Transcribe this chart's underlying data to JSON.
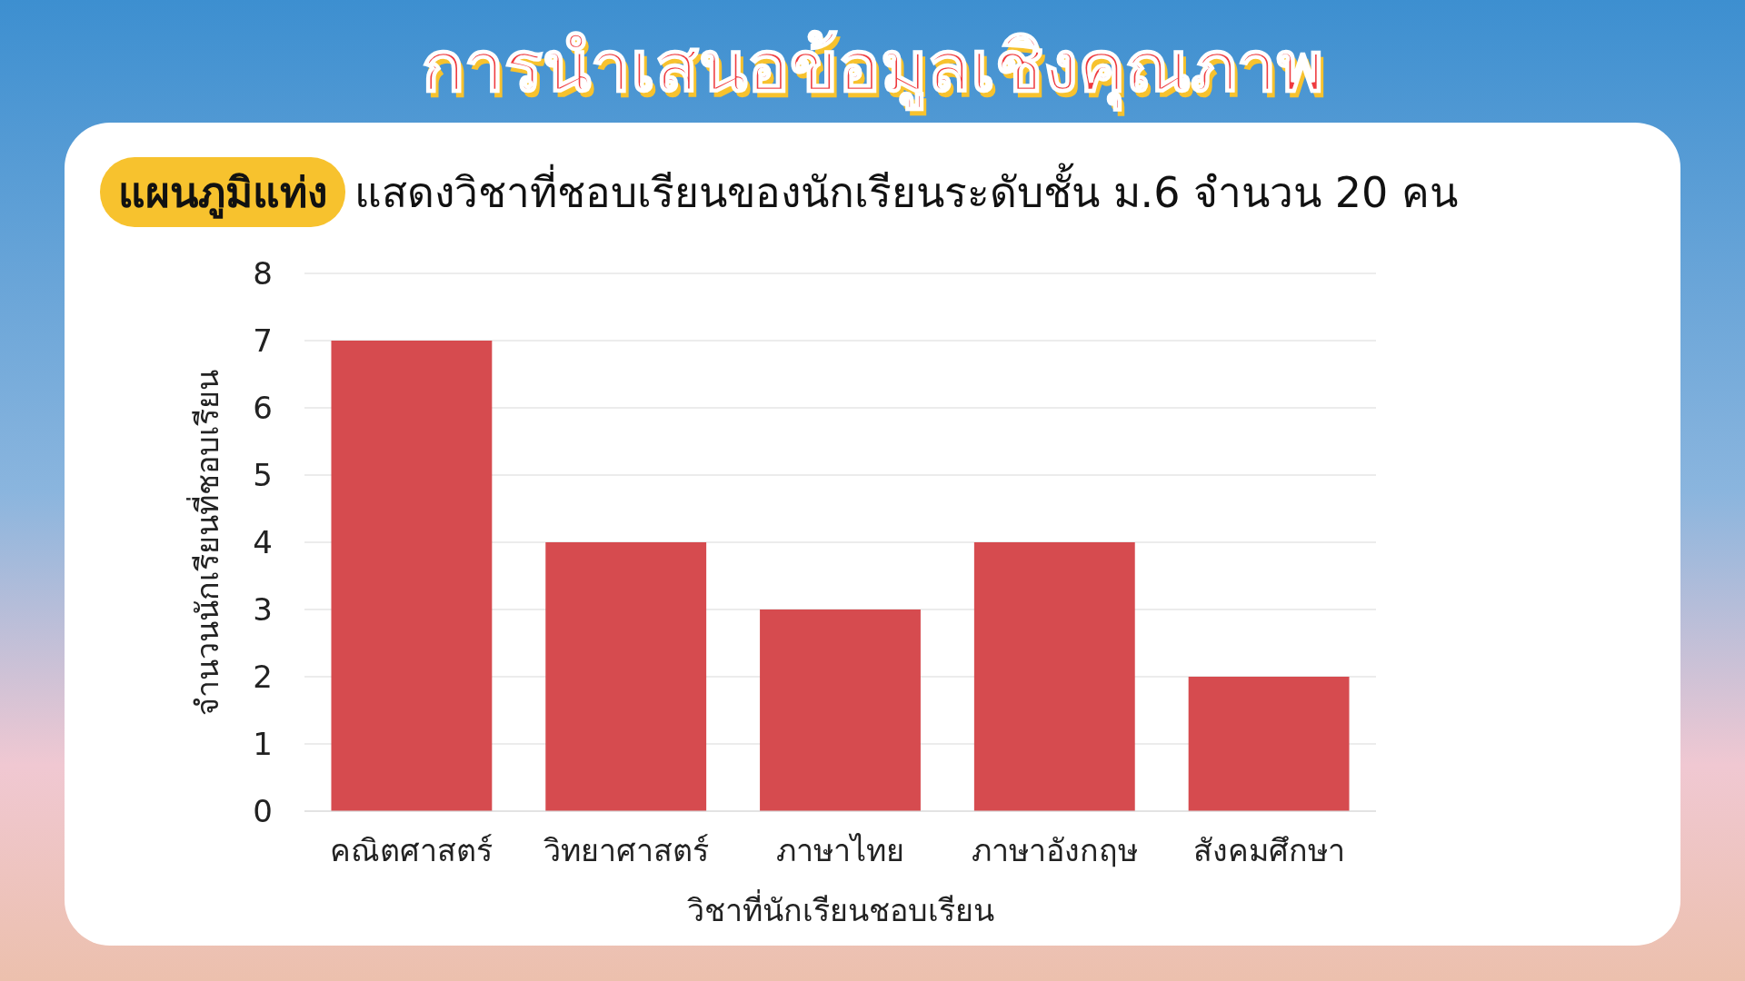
{
  "chart_data": {
    "type": "bar",
    "title": "การนำเสนอข้อมูลเชิงคุณภาพ",
    "subtitle": "แผนภูมิแท่ง",
    "annotations": [
      "แสดงวิชาที่ชอบเรียนของนักเรียนระดับชั้น ม.6 จำนวน 20 คน"
    ],
    "xlabel": "วิชาที่นักเรียนชอบเรียน",
    "ylabel": "จำนวนนักเรียนที่ชอบเรียน",
    "categories": [
      "คณิตศาสตร์",
      "วิทยาศาสตร์",
      "ภาษาไทย",
      "ภาษาอังกฤษ",
      "สังคมศึกษา"
    ],
    "values": [
      7,
      4,
      3,
      4,
      2
    ],
    "color": "#d64b4f",
    "ylim": [
      0,
      8
    ],
    "yticks": [
      0,
      1,
      2,
      3,
      4,
      5,
      6,
      7,
      8
    ],
    "grid": "y"
  }
}
